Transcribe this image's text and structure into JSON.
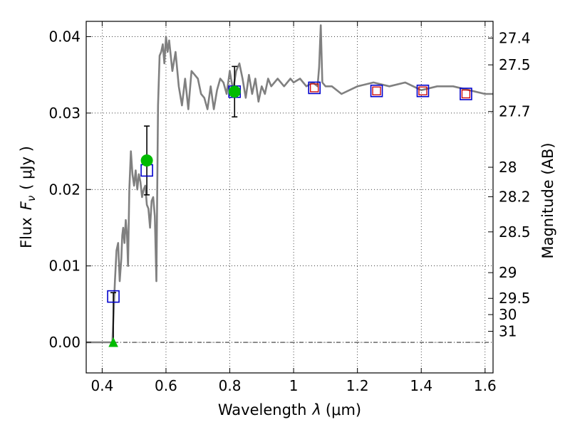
{
  "chart_data": {
    "type": "line",
    "xlabel": "Wavelength",
    "xlabel_symbol": "λ",
    "xlabel_unit": "(μm)",
    "ylabel": "Flux",
    "ylabel_symbol": "F",
    "ylabel_symbol_sub": "ν",
    "ylabel_unit": "( μJy )",
    "y2label": "Magnitude (AB)",
    "xlim": [
      0.35,
      1.625
    ],
    "ylim": [
      -0.004,
      0.042
    ],
    "grid": true,
    "x_ticks": [
      {
        "value": 0.4,
        "label": "0.4"
      },
      {
        "value": 0.6,
        "label": "0.6"
      },
      {
        "value": 0.8,
        "label": "0.8"
      },
      {
        "value": 1.0,
        "label": "1"
      },
      {
        "value": 1.2,
        "label": "1.2"
      },
      {
        "value": 1.4,
        "label": "1.4"
      },
      {
        "value": 1.6,
        "label": "1.6"
      }
    ],
    "y_ticks": [
      {
        "value": 0.0,
        "label": "0.00"
      },
      {
        "value": 0.01,
        "label": "0.01"
      },
      {
        "value": 0.02,
        "label": "0.02"
      },
      {
        "value": 0.03,
        "label": "0.03"
      },
      {
        "value": 0.04,
        "label": "0.04"
      }
    ],
    "magnitude_ticks": [
      {
        "mag": 27.4,
        "label": "27.4"
      },
      {
        "mag": 27.5,
        "label": "27.5"
      },
      {
        "mag": 27.7,
        "label": "27.7"
      },
      {
        "mag": 28.0,
        "label": "28"
      },
      {
        "mag": 28.2,
        "label": "28.2"
      },
      {
        "mag": 28.5,
        "label": "28.5"
      },
      {
        "mag": 29.0,
        "label": "29"
      },
      {
        "mag": 29.5,
        "label": "29.5"
      },
      {
        "mag": 30.0,
        "label": "30"
      },
      {
        "mag": 31.0,
        "label": "31"
      }
    ],
    "spectrum": {
      "color": "#808080",
      "x": [
        0.35,
        0.432,
        0.436,
        0.44,
        0.445,
        0.45,
        0.455,
        0.46,
        0.463,
        0.466,
        0.47,
        0.474,
        0.478,
        0.481,
        0.485,
        0.49,
        0.495,
        0.5,
        0.505,
        0.51,
        0.515,
        0.52,
        0.525,
        0.53,
        0.535,
        0.54,
        0.545,
        0.55,
        0.555,
        0.56,
        0.565,
        0.57,
        0.575,
        0.58,
        0.585,
        0.59,
        0.595,
        0.6,
        0.605,
        0.61,
        0.62,
        0.63,
        0.64,
        0.65,
        0.66,
        0.67,
        0.68,
        0.69,
        0.7,
        0.71,
        0.72,
        0.73,
        0.74,
        0.75,
        0.76,
        0.77,
        0.78,
        0.79,
        0.8,
        0.81,
        0.82,
        0.83,
        0.84,
        0.85,
        0.86,
        0.87,
        0.88,
        0.89,
        0.9,
        0.91,
        0.92,
        0.93,
        0.95,
        0.97,
        0.99,
        1.0,
        1.02,
        1.04,
        1.06,
        1.075,
        1.08,
        1.085,
        1.09,
        1.1,
        1.12,
        1.15,
        1.2,
        1.25,
        1.3,
        1.35,
        1.4,
        1.45,
        1.5,
        1.55,
        1.6,
        1.625
      ],
      "y": [
        0.0,
        0.0,
        0.004,
        0.008,
        0.012,
        0.013,
        0.008,
        0.011,
        0.014,
        0.015,
        0.013,
        0.016,
        0.014,
        0.01,
        0.02,
        0.025,
        0.022,
        0.0205,
        0.0225,
        0.02,
        0.022,
        0.021,
        0.019,
        0.02,
        0.0205,
        0.018,
        0.0175,
        0.015,
        0.0185,
        0.019,
        0.0165,
        0.008,
        0.031,
        0.0375,
        0.038,
        0.039,
        0.0365,
        0.04,
        0.038,
        0.0395,
        0.0355,
        0.038,
        0.0335,
        0.031,
        0.0345,
        0.0305,
        0.0355,
        0.035,
        0.0345,
        0.0325,
        0.032,
        0.0305,
        0.0335,
        0.0305,
        0.033,
        0.0345,
        0.034,
        0.0325,
        0.0355,
        0.033,
        0.0355,
        0.0365,
        0.0345,
        0.032,
        0.035,
        0.0325,
        0.0345,
        0.0315,
        0.0335,
        0.0325,
        0.0345,
        0.0335,
        0.0345,
        0.0335,
        0.0345,
        0.034,
        0.0345,
        0.0335,
        0.034,
        0.0335,
        0.036,
        0.0415,
        0.034,
        0.0335,
        0.0335,
        0.0325,
        0.0335,
        0.034,
        0.0335,
        0.034,
        0.033,
        0.0335,
        0.0335,
        0.033,
        0.0325,
        0.0325
      ]
    },
    "model_photometry": {
      "marker": "open-square",
      "edge_color": "#0000cc",
      "x": [
        0.435,
        0.54,
        0.815,
        1.065,
        1.26,
        1.405,
        1.54
      ],
      "y": [
        0.006,
        0.0225,
        0.0328,
        0.0333,
        0.0329,
        0.0329,
        0.0325
      ]
    },
    "observed_photometry": {
      "marker": "open-square",
      "edge_color": "#cc0000",
      "x": [
        1.065,
        1.26,
        1.405,
        1.54
      ],
      "y": [
        0.0333,
        0.0329,
        0.0329,
        0.0325
      ]
    },
    "detections": {
      "marker": "filled-circle",
      "color": "#00bb00",
      "x": [
        0.54,
        0.815
      ],
      "y": [
        0.0238,
        0.0328
      ],
      "err_low": [
        0.0045,
        0.0033
      ],
      "err_high": [
        0.0045,
        0.0033
      ]
    },
    "upper_limit": {
      "marker": "filled-triangle",
      "color": "#00bb00",
      "x": 0.435,
      "y": 0.0,
      "err_high": 0.0065
    }
  }
}
